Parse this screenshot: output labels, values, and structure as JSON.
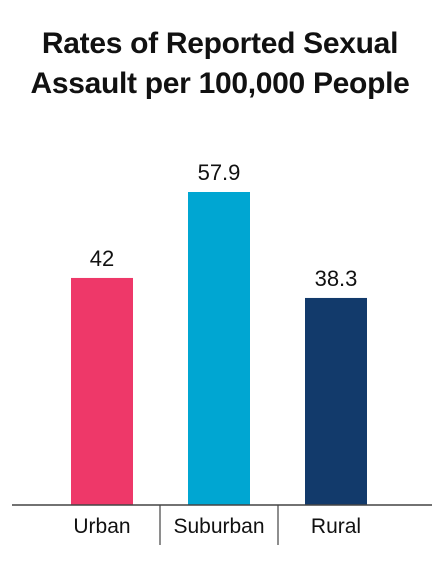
{
  "chart_data": {
    "type": "bar",
    "title_lines": [
      "Rates of Reported Sexual",
      "Assault per 100,000 People"
    ],
    "categories": [
      "Urban",
      "Suburban",
      "Rural"
    ],
    "values": [
      42,
      57.9,
      38.3
    ],
    "value_labels": [
      "42",
      "57.9",
      "38.3"
    ],
    "colors": [
      "#ee3869",
      "#00a6d2",
      "#123a6b"
    ],
    "ylim": [
      0,
      70
    ],
    "grid": false,
    "legend": false
  }
}
